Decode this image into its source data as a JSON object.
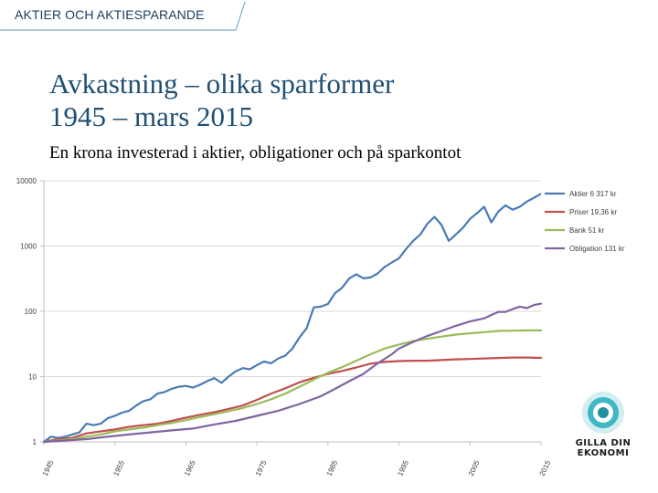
{
  "header": {
    "section_label": "AKTIER OCH AKTIESPARANDE"
  },
  "title_line1": "Avkastning – olika sparformer",
  "title_line2": "1945 – mars 2015",
  "subtitle": "En krona investerad i aktier, obligationer och på sparkontot",
  "logo": {
    "line1": "GILLA DIN",
    "line2": "EKONOMI"
  },
  "chart_data": {
    "type": "line",
    "yscale": "log",
    "ylim": [
      1,
      10000
    ],
    "xlim": [
      1945,
      2015
    ],
    "grid": "horizontal",
    "legend_position": "top-right",
    "y_ticks": [
      {
        "value": 1,
        "label": "1"
      },
      {
        "value": 10,
        "label": "10"
      },
      {
        "value": 100,
        "label": "100"
      },
      {
        "value": 1000,
        "label": "1000"
      },
      {
        "value": 10000,
        "label": "10000"
      }
    ],
    "x_ticks": [
      {
        "value": 1945,
        "label": "1945"
      },
      {
        "value": 1955,
        "label": "1955"
      },
      {
        "value": 1965,
        "label": "1965"
      },
      {
        "value": 1975,
        "label": "1975"
      },
      {
        "value": 1985,
        "label": "1985"
      },
      {
        "value": 1995,
        "label": "1995"
      },
      {
        "value": 2005,
        "label": "2005"
      },
      {
        "value": 2015,
        "label": "2015"
      }
    ],
    "series": [
      {
        "name": "Aktier 6 317 kr",
        "color": "#4a7ab5",
        "points": [
          [
            1945,
            1.0
          ],
          [
            1946,
            1.2
          ],
          [
            1947,
            1.15
          ],
          [
            1948,
            1.2
          ],
          [
            1949,
            1.3
          ],
          [
            1950,
            1.4
          ],
          [
            1951,
            1.9
          ],
          [
            1952,
            1.8
          ],
          [
            1953,
            1.9
          ],
          [
            1954,
            2.3
          ],
          [
            1955,
            2.5
          ],
          [
            1956,
            2.8
          ],
          [
            1957,
            3.0
          ],
          [
            1958,
            3.6
          ],
          [
            1959,
            4.2
          ],
          [
            1960,
            4.5
          ],
          [
            1961,
            5.5
          ],
          [
            1962,
            5.8
          ],
          [
            1963,
            6.5
          ],
          [
            1964,
            7.0
          ],
          [
            1965,
            7.2
          ],
          [
            1966,
            6.8
          ],
          [
            1967,
            7.5
          ],
          [
            1968,
            8.5
          ],
          [
            1969,
            9.5
          ],
          [
            1970,
            8.0
          ],
          [
            1971,
            10.0
          ],
          [
            1972,
            12.0
          ],
          [
            1973,
            13.5
          ],
          [
            1974,
            13.0
          ],
          [
            1975,
            15.0
          ],
          [
            1976,
            17.0
          ],
          [
            1977,
            16.0
          ],
          [
            1978,
            19.0
          ],
          [
            1979,
            21.0
          ],
          [
            1980,
            27.0
          ],
          [
            1981,
            40.0
          ],
          [
            1982,
            55.0
          ],
          [
            1983,
            115.0
          ],
          [
            1984,
            118.0
          ],
          [
            1985,
            130.0
          ],
          [
            1986,
            190.0
          ],
          [
            1987,
            230.0
          ],
          [
            1988,
            320.0
          ],
          [
            1989,
            370.0
          ],
          [
            1990,
            320.0
          ],
          [
            1991,
            330.0
          ],
          [
            1992,
            380.0
          ],
          [
            1993,
            480.0
          ],
          [
            1994,
            560.0
          ],
          [
            1995,
            650.0
          ],
          [
            1996,
            900.0
          ],
          [
            1997,
            1200.0
          ],
          [
            1998,
            1500.0
          ],
          [
            1999,
            2200.0
          ],
          [
            2000,
            2800.0
          ],
          [
            2001,
            2100.0
          ],
          [
            2002,
            1200.0
          ],
          [
            2003,
            1500.0
          ],
          [
            2004,
            1900.0
          ],
          [
            2005,
            2600.0
          ],
          [
            2006,
            3200.0
          ],
          [
            2007,
            4000.0
          ],
          [
            2008,
            2300.0
          ],
          [
            2009,
            3400.0
          ],
          [
            2010,
            4200.0
          ],
          [
            2011,
            3600.0
          ],
          [
            2012,
            4000.0
          ],
          [
            2013,
            4800.0
          ],
          [
            2014,
            5500.0
          ],
          [
            2015,
            6317.0
          ]
        ]
      },
      {
        "name": "Priser 19,36 kr",
        "color": "#c0504d",
        "points": [
          [
            1945,
            1.0
          ],
          [
            1947,
            1.1
          ],
          [
            1949,
            1.15
          ],
          [
            1951,
            1.35
          ],
          [
            1953,
            1.45
          ],
          [
            1955,
            1.55
          ],
          [
            1957,
            1.7
          ],
          [
            1959,
            1.8
          ],
          [
            1961,
            1.9
          ],
          [
            1963,
            2.1
          ],
          [
            1965,
            2.35
          ],
          [
            1967,
            2.6
          ],
          [
            1969,
            2.85
          ],
          [
            1971,
            3.2
          ],
          [
            1973,
            3.6
          ],
          [
            1975,
            4.4
          ],
          [
            1977,
            5.5
          ],
          [
            1979,
            6.6
          ],
          [
            1981,
            8.2
          ],
          [
            1983,
            9.6
          ],
          [
            1985,
            11.0
          ],
          [
            1987,
            12.2
          ],
          [
            1989,
            13.8
          ],
          [
            1991,
            15.8
          ],
          [
            1993,
            16.8
          ],
          [
            1995,
            17.3
          ],
          [
            1997,
            17.5
          ],
          [
            1999,
            17.5
          ],
          [
            2001,
            17.9
          ],
          [
            2003,
            18.4
          ],
          [
            2005,
            18.6
          ],
          [
            2007,
            19.0
          ],
          [
            2009,
            19.3
          ],
          [
            2011,
            19.6
          ],
          [
            2013,
            19.6
          ],
          [
            2015,
            19.36
          ]
        ]
      },
      {
        "name": "Bank 51 kr",
        "color": "#9bbb59",
        "points": [
          [
            1945,
            1.0
          ],
          [
            1947,
            1.05
          ],
          [
            1949,
            1.1
          ],
          [
            1951,
            1.2
          ],
          [
            1953,
            1.3
          ],
          [
            1955,
            1.45
          ],
          [
            1957,
            1.55
          ],
          [
            1959,
            1.65
          ],
          [
            1961,
            1.8
          ],
          [
            1963,
            1.95
          ],
          [
            1965,
            2.15
          ],
          [
            1967,
            2.4
          ],
          [
            1969,
            2.65
          ],
          [
            1971,
            2.95
          ],
          [
            1973,
            3.3
          ],
          [
            1975,
            3.8
          ],
          [
            1977,
            4.5
          ],
          [
            1979,
            5.5
          ],
          [
            1981,
            7.0
          ],
          [
            1983,
            9.0
          ],
          [
            1985,
            11.5
          ],
          [
            1987,
            14.0
          ],
          [
            1989,
            17.5
          ],
          [
            1991,
            22.0
          ],
          [
            1993,
            27.0
          ],
          [
            1995,
            31.0
          ],
          [
            1997,
            35.0
          ],
          [
            1999,
            38.0
          ],
          [
            2001,
            41.0
          ],
          [
            2003,
            44.0
          ],
          [
            2005,
            46.0
          ],
          [
            2007,
            48.0
          ],
          [
            2009,
            50.0
          ],
          [
            2011,
            50.5
          ],
          [
            2013,
            51.0
          ],
          [
            2015,
            51.0
          ]
        ]
      },
      {
        "name": "Obligation 131 kr",
        "color": "#8064a2",
        "points": [
          [
            1945,
            1.0
          ],
          [
            1948,
            1.05
          ],
          [
            1951,
            1.1
          ],
          [
            1954,
            1.2
          ],
          [
            1957,
            1.3
          ],
          [
            1960,
            1.4
          ],
          [
            1963,
            1.5
          ],
          [
            1966,
            1.6
          ],
          [
            1969,
            1.85
          ],
          [
            1972,
            2.1
          ],
          [
            1975,
            2.5
          ],
          [
            1978,
            3.0
          ],
          [
            1981,
            3.8
          ],
          [
            1984,
            5.0
          ],
          [
            1986,
            6.5
          ],
          [
            1988,
            8.5
          ],
          [
            1990,
            11.0
          ],
          [
            1992,
            16.0
          ],
          [
            1994,
            22.0
          ],
          [
            1995,
            27.0
          ],
          [
            1997,
            34.0
          ],
          [
            1999,
            42.0
          ],
          [
            2001,
            50.0
          ],
          [
            2003,
            60.0
          ],
          [
            2005,
            70.0
          ],
          [
            2007,
            78.0
          ],
          [
            2008,
            88.0
          ],
          [
            2009,
            98.0
          ],
          [
            2010,
            98.0
          ],
          [
            2011,
            108.0
          ],
          [
            2012,
            118.0
          ],
          [
            2013,
            112.0
          ],
          [
            2014,
            125.0
          ],
          [
            2015,
            131.0
          ]
        ]
      }
    ]
  }
}
